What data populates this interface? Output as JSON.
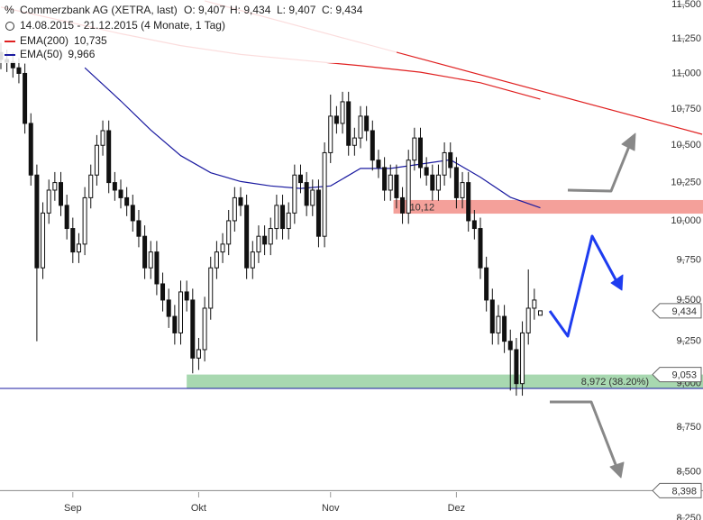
{
  "chart_data": {
    "type": "candlestick",
    "title": "Commerzbank AG (XETRA, last)",
    "quote": [
      "O: 9,407",
      "H: 9,434",
      "L: 9,407",
      "C: 9,434"
    ],
    "subtitle": "14.08.2015 - 21.12.2015 (4 Monate, 1 Tag)",
    "log_scale": true,
    "ylim": [
      8240,
      11535
    ],
    "yticks": [
      {
        "value": 11500,
        "label": "11,500"
      },
      {
        "value": 11250,
        "label": "11,250"
      },
      {
        "value": 11000,
        "label": "11,000"
      },
      {
        "value": 10750,
        "label": "10,750"
      },
      {
        "value": 10500,
        "label": "10,500"
      },
      {
        "value": 10250,
        "label": "10,250"
      },
      {
        "value": 10000,
        "label": "10,000"
      },
      {
        "value": 9750,
        "label": "9,750"
      },
      {
        "value": 9500,
        "label": "9,500"
      },
      {
        "value": 9250,
        "label": "9,250"
      },
      {
        "value": 9000,
        "label": "9,000"
      },
      {
        "value": 8750,
        "label": "8,750"
      },
      {
        "value": 8500,
        "label": "8,500"
      },
      {
        "value": 8250,
        "label": "8,250"
      }
    ],
    "xticks": [
      {
        "value": 12,
        "label": "Sep"
      },
      {
        "value": 33,
        "label": "Okt"
      },
      {
        "value": 55,
        "label": "Nov"
      },
      {
        "value": 76,
        "label": "Dez"
      }
    ],
    "open": [
      11150,
      11100,
      11080,
      11040,
      11000,
      10650,
      10300,
      9700,
      10050,
      10200,
      10250,
      10100,
      9950,
      9800,
      9850,
      10150,
      10300,
      10500,
      10600,
      10250,
      10200,
      10150,
      10100,
      10000,
      9900,
      9700,
      9800,
      9600,
      9500,
      9400,
      9300,
      9550,
      9500,
      9150,
      9200,
      9450,
      9700,
      9800,
      9850,
      10000,
      10150,
      10100,
      9700,
      9800,
      9900,
      9850,
      9950,
      10100,
      9950,
      10050,
      10300,
      10250,
      10100,
      10200,
      9900,
      10450,
      10700,
      10650,
      10800,
      10500,
      10550,
      10700,
      10600,
      10400,
      10350,
      10200,
      10300,
      10150,
      10050,
      10400,
      10550,
      10350,
      10300,
      10200,
      10300,
      10450,
      10350,
      10150,
      10250,
      10000,
      9950,
      9700,
      9500,
      9300,
      9400,
      9250,
      9200,
      9000,
      9300,
      9450,
      9407
    ],
    "high": [
      11220,
      11170,
      11150,
      11110,
      11070,
      10720,
      10370,
      10120,
      10270,
      10320,
      10320,
      10170,
      10020,
      9920,
      10220,
      10370,
      10570,
      10670,
      10670,
      10320,
      10270,
      10220,
      10170,
      10070,
      9970,
      9870,
      9870,
      9670,
      9570,
      9470,
      9620,
      9620,
      9570,
      9270,
      9520,
      9770,
      9870,
      9920,
      10070,
      10220,
      10220,
      10170,
      9870,
      9970,
      9970,
      10020,
      10170,
      10170,
      10120,
      10370,
      10370,
      10320,
      10270,
      10270,
      10520,
      10850,
      10770,
      10870,
      10870,
      10620,
      10770,
      10770,
      10670,
      10470,
      10420,
      10370,
      10370,
      10220,
      10470,
      10620,
      10620,
      10420,
      10370,
      10370,
      10520,
      10520,
      10420,
      10320,
      10320,
      10070,
      10020,
      9770,
      9570,
      9470,
      9470,
      9320,
      9270,
      9370,
      9690,
      9570,
      9434
    ],
    "low": [
      11030,
      11010,
      10970,
      10930,
      10580,
      10230,
      9250,
      9630,
      9980,
      10130,
      10030,
      9880,
      9730,
      9730,
      9780,
      10080,
      10230,
      10430,
      10180,
      10130,
      10080,
      10030,
      9930,
      9830,
      9630,
      9630,
      9530,
      9430,
      9330,
      9230,
      9230,
      9430,
      9060,
      9080,
      9130,
      9380,
      9630,
      9730,
      9780,
      9930,
      10030,
      9630,
      9630,
      9730,
      9780,
      9780,
      9880,
      9880,
      9880,
      9980,
      10180,
      10030,
      10030,
      9830,
      9830,
      10380,
      10580,
      10580,
      10430,
      10430,
      10480,
      10530,
      10330,
      10280,
      10130,
      10130,
      10080,
      9980,
      9980,
      10330,
      10280,
      10230,
      10130,
      10130,
      10230,
      10280,
      10080,
      10080,
      9930,
      9880,
      9630,
      9430,
      9230,
      9230,
      9180,
      8960,
      8930,
      8930,
      9230,
      9380,
      9407
    ],
    "close": [
      11100,
      11080,
      11040,
      11000,
      10650,
      10300,
      9700,
      10050,
      10200,
      10250,
      10100,
      9950,
      9800,
      9850,
      10150,
      10300,
      10500,
      10600,
      10250,
      10200,
      10150,
      10100,
      10000,
      9900,
      9700,
      9800,
      9600,
      9500,
      9400,
      9300,
      9550,
      9500,
      9150,
      9200,
      9450,
      9700,
      9800,
      9850,
      10000,
      10150,
      10100,
      9700,
      9800,
      9900,
      9850,
      9950,
      10100,
      9950,
      10050,
      10300,
      10250,
      10100,
      10200,
      9900,
      10450,
      10700,
      10650,
      10800,
      10500,
      10550,
      10700,
      10600,
      10400,
      10350,
      10200,
      10300,
      10150,
      10050,
      10400,
      10550,
      10350,
      10300,
      10200,
      10300,
      10450,
      10350,
      10150,
      10250,
      10000,
      9950,
      9700,
      9500,
      9300,
      9400,
      9250,
      9200,
      9000,
      9300,
      9450,
      9500,
      9434
    ],
    "series": [
      {
        "name": "EMA(200)",
        "value_label": "10,735",
        "color": "#e02020",
        "x": [
          0,
          10,
          20,
          30,
          40,
          50,
          60,
          70,
          80,
          90
        ],
        "values": [
          11483,
          11384,
          11286,
          11200,
          11136,
          11095,
          11055,
          11009,
          10934,
          10818
        ]
      },
      {
        "name": "EMA(50)",
        "value_label": "9,966",
        "color": "#1a1aa0",
        "x": [
          14,
          20,
          25,
          30,
          35,
          40,
          45,
          50,
          55,
          60,
          65,
          70,
          75,
          80,
          85,
          90
        ],
        "values": [
          11040,
          10806,
          10604,
          10430,
          10315,
          10257,
          10228,
          10211,
          10228,
          10344,
          10344,
          10373,
          10402,
          10286,
          10153,
          10084
        ]
      }
    ],
    "trendline": {
      "color": "#e02020",
      "x": [
        34,
        117
      ],
      "values": [
        11529,
        10575
      ]
    },
    "zones": [
      {
        "low": 10046,
        "high": 10135,
        "start": 65.5,
        "color": "#f4a09a",
        "label": "10,12"
      },
      {
        "low": 8972,
        "high": 9053,
        "start": 31,
        "color": "#a8d8b0",
        "label": "8,972 (38.20%)"
      }
    ],
    "level_line": {
      "value": 8972,
      "color": "#1a1aa0"
    },
    "floor_line": {
      "value": 8398,
      "color": "#888"
    },
    "price_tags": [
      {
        "value": 9434,
        "label": "9,434"
      },
      {
        "value": 9053,
        "label": "9,053"
      },
      {
        "value": 8398,
        "label": "8,398"
      }
    ]
  }
}
